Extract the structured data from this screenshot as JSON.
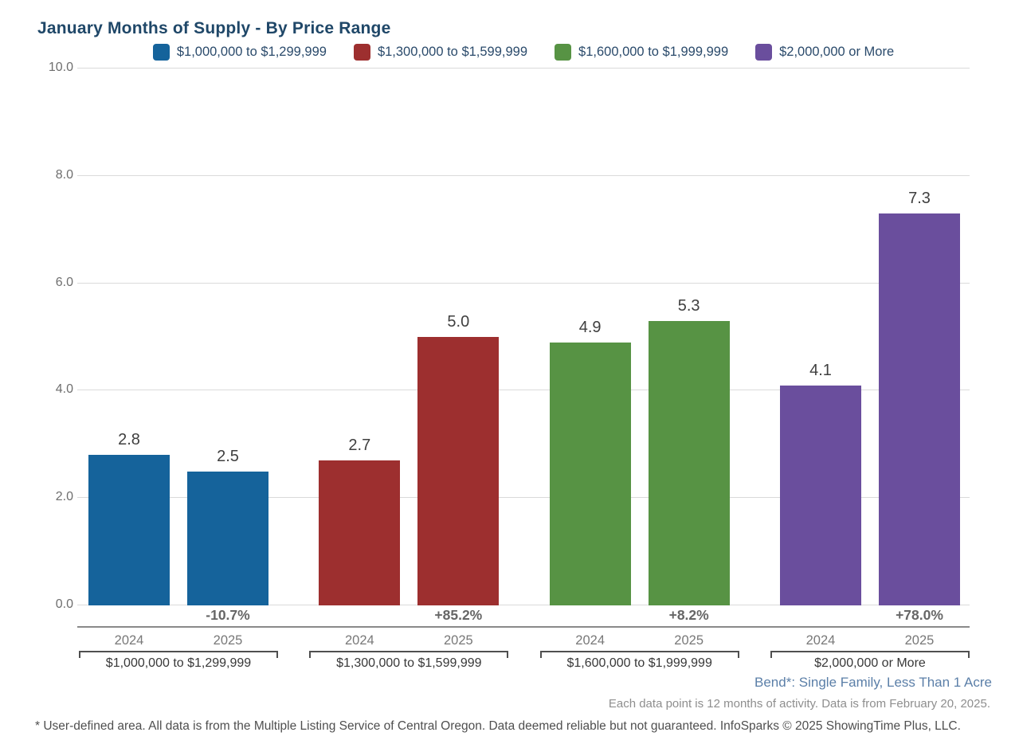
{
  "title": "January Months of Supply - By Price Range",
  "chart_data": {
    "type": "bar",
    "title": "January Months of Supply - By Price Range",
    "xlabel": "",
    "ylabel": "",
    "ylim": [
      0,
      10
    ],
    "ytick_values": [
      0,
      2,
      4,
      6,
      8,
      10
    ],
    "ytick_labels": [
      "0.0",
      "2.0",
      "4.0",
      "6.0",
      "8.0",
      "10.0"
    ],
    "grid": true,
    "legend_position": "top",
    "categories": [
      "2024",
      "2025"
    ],
    "groups": [
      {
        "label": "$1,000,000 to $1,299,999",
        "color": "#15639B",
        "values": [
          2.8,
          2.5
        ],
        "value_labels": [
          "2.8",
          "2.5"
        ],
        "change_label": "-10.7%"
      },
      {
        "label": "$1,300,000 to $1,599,999",
        "color": "#9D2F2F",
        "values": [
          2.7,
          5.0
        ],
        "value_labels": [
          "2.7",
          "5.0"
        ],
        "change_label": "+85.2%"
      },
      {
        "label": "$1,600,000 to $1,999,999",
        "color": "#579344",
        "values": [
          4.9,
          5.3
        ],
        "value_labels": [
          "4.9",
          "5.3"
        ],
        "change_label": "+8.2%"
      },
      {
        "label": "$2,000,000 or More",
        "color": "#6A4E9D",
        "values": [
          4.1,
          7.3
        ],
        "value_labels": [
          "4.1",
          "7.3"
        ],
        "change_label": "+78.0%"
      }
    ]
  },
  "footnotes": {
    "area_line": "Bend*: Single Family, Less Than 1 Acre",
    "data_line": "Each data point is 12 months of activity. Data is from February 20, 2025.",
    "disclaimer": "* User-defined area. All data is from the Multiple Listing Service of Central Oregon. Data deemed reliable but not guaranteed. InfoSparks © 2025 ShowingTime Plus, LLC."
  }
}
